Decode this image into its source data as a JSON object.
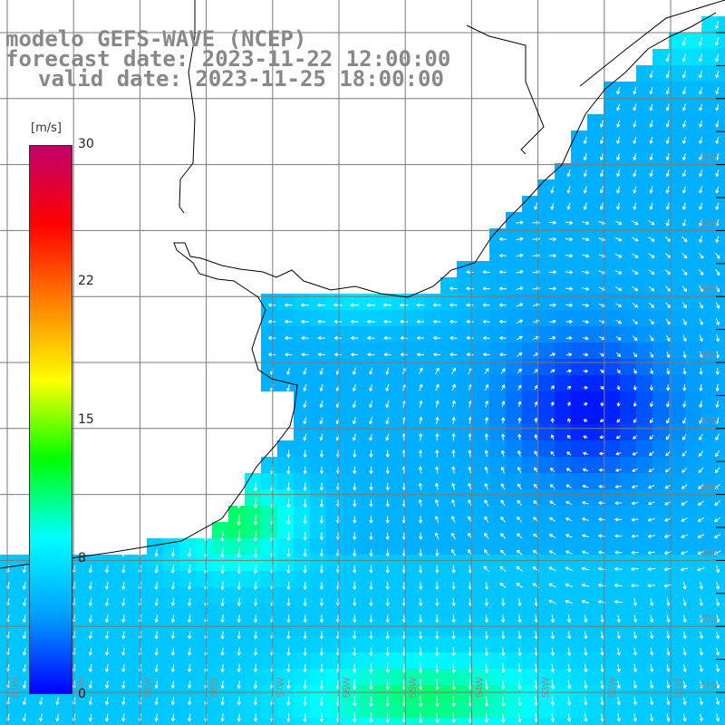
{
  "titles": {
    "model": "modelo GEFS-WAVE (NCEP)",
    "forecast": "forecast date: 2023-11-22 12:00:00",
    "valid": "valid date: 2023-11-25 18:00:00"
  },
  "colorbar": {
    "unit": "[m/s]",
    "ticks": [
      "30",
      "22",
      "15",
      "8",
      "0"
    ],
    "tick_values": [
      30,
      22,
      15,
      8,
      0
    ],
    "range": [
      0,
      30
    ],
    "colors": [
      "#0000ff",
      "#00a0ff",
      "#00ffff",
      "#00ff00",
      "#ffff00",
      "#ff8000",
      "#ff0000",
      "#c0006a"
    ]
  },
  "map": {
    "lat_labels": [
      "33S",
      "34S",
      "35S",
      "36S",
      "37S",
      "38S",
      "39S",
      "40S",
      "41S"
    ],
    "lon_labels": [
      "61W",
      "60W",
      "59W",
      "58W",
      "57W",
      "56W",
      "55W",
      "54W",
      "53W",
      "52W",
      "51W"
    ],
    "land_color": "#ffffff",
    "grid_color": "#7a7a7a",
    "arrow_color": "#ffffff"
  }
}
